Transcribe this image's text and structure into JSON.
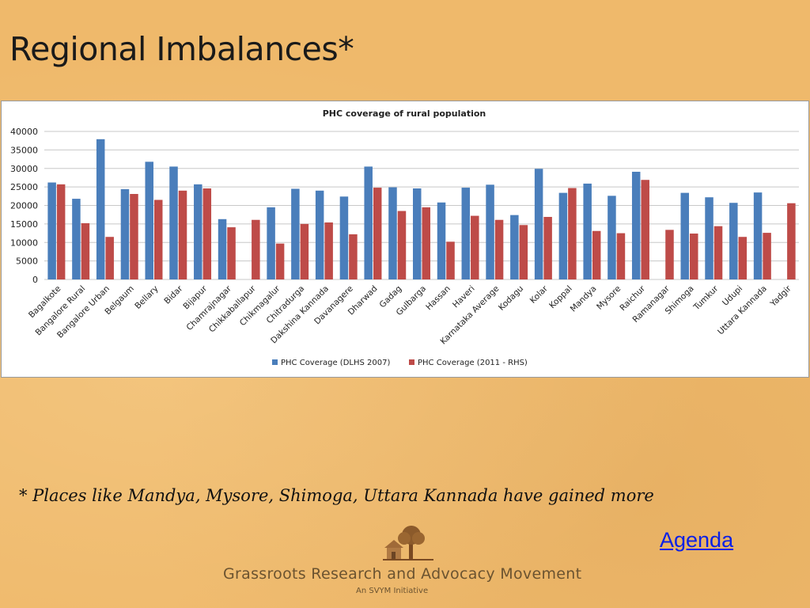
{
  "slide": {
    "title": "Regional Imbalances*",
    "footnote": "* Places like Mandya, Mysore, Shimoga, Uttara Kannada have gained more",
    "agenda_link": "Agenda",
    "org_name": "Grassroots Research and Advocacy Movement",
    "org_subtitle": "An SVYM Initiative"
  },
  "colors": {
    "background": "#efb96b",
    "series_1": "#4a7ebb",
    "series_2": "#be4b48",
    "link": "#0a20e6"
  },
  "chart_data": {
    "type": "bar",
    "title": "PHC coverage of rural population",
    "xlabel": "",
    "ylabel": "",
    "ylim": [
      0,
      40000
    ],
    "yticks": [
      0,
      5000,
      10000,
      15000,
      20000,
      25000,
      30000,
      35000,
      40000
    ],
    "grid": true,
    "legend_position": "bottom",
    "categories": [
      "Bagalkote",
      "Bangalore Rural",
      "Bangalore Urban",
      "Belgaum",
      "Bellary",
      "Bidar",
      "Bijapur",
      "Chamrajnagar",
      "Chikkaballapur",
      "Chikmagalur",
      "Chitradurga",
      "Dakshina Kannada",
      "Davanagere",
      "Dharwad",
      "Gadag",
      "Gulbarga",
      "Hassan",
      "Haveri",
      "Karnataka Average",
      "Kodagu",
      "Kolar",
      "Koppal",
      "Mandya",
      "Mysore",
      "Raichur",
      "Ramanagar",
      "Shimoga",
      "Tumkur",
      "Udupi",
      "Uttara Kannada",
      "Yadgir"
    ],
    "series": [
      {
        "name": "PHC Coverage (DLHS 2007)",
        "values": [
          26200,
          21800,
          37900,
          24400,
          31800,
          30500,
          25700,
          16300,
          null,
          19500,
          24500,
          24000,
          22400,
          30500,
          24900,
          24600,
          20800,
          24800,
          25600,
          17400,
          29900,
          23400,
          25900,
          22600,
          29100,
          null,
          23400,
          22200,
          20700,
          23500,
          null
        ]
      },
      {
        "name": "PHC Coverage (2011 - RHS)",
        "values": [
          25700,
          15200,
          11500,
          23100,
          21500,
          24000,
          24600,
          14100,
          16100,
          9700,
          15000,
          15400,
          12200,
          24800,
          18500,
          19500,
          10200,
          17200,
          16100,
          14700,
          16900,
          24700,
          13100,
          12500,
          26900,
          13400,
          12400,
          14400,
          11500,
          12600,
          20600
        ]
      }
    ]
  }
}
